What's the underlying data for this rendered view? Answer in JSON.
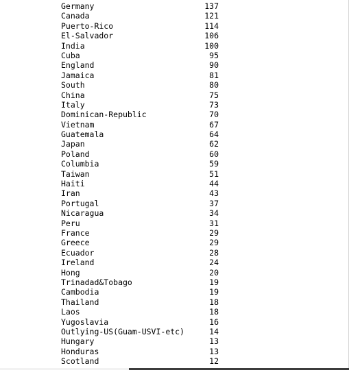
{
  "rows": [
    {
      "country": "Germany",
      "count": "137"
    },
    {
      "country": "Canada",
      "count": "121"
    },
    {
      "country": "Puerto-Rico",
      "count": "114"
    },
    {
      "country": "El-Salvador",
      "count": "106"
    },
    {
      "country": "India",
      "count": "100"
    },
    {
      "country": "Cuba",
      "count": "95"
    },
    {
      "country": "England",
      "count": "90"
    },
    {
      "country": "Jamaica",
      "count": "81"
    },
    {
      "country": "South",
      "count": "80"
    },
    {
      "country": "China",
      "count": "75"
    },
    {
      "country": "Italy",
      "count": "73"
    },
    {
      "country": "Dominican-Republic",
      "count": "70"
    },
    {
      "country": "Vietnam",
      "count": "67"
    },
    {
      "country": "Guatemala",
      "count": "64"
    },
    {
      "country": "Japan",
      "count": "62"
    },
    {
      "country": "Poland",
      "count": "60"
    },
    {
      "country": "Columbia",
      "count": "59"
    },
    {
      "country": "Taiwan",
      "count": "51"
    },
    {
      "country": "Haiti",
      "count": "44"
    },
    {
      "country": "Iran",
      "count": "43"
    },
    {
      "country": "Portugal",
      "count": "37"
    },
    {
      "country": "Nicaragua",
      "count": "34"
    },
    {
      "country": "Peru",
      "count": "31"
    },
    {
      "country": "France",
      "count": "29"
    },
    {
      "country": "Greece",
      "count": "29"
    },
    {
      "country": "Ecuador",
      "count": "28"
    },
    {
      "country": "Ireland",
      "count": "24"
    },
    {
      "country": "Hong",
      "count": "20"
    },
    {
      "country": "Trinadad&Tobago",
      "count": "19"
    },
    {
      "country": "Cambodia",
      "count": "19"
    },
    {
      "country": "Thailand",
      "count": "18"
    },
    {
      "country": "Laos",
      "count": "18"
    },
    {
      "country": "Yugoslavia",
      "count": "16"
    },
    {
      "country": "Outlying-US(Guam-USVI-etc)",
      "count": "14"
    },
    {
      "country": "Hungary",
      "count": "13"
    },
    {
      "country": "Honduras",
      "count": "13"
    },
    {
      "country": "Scotland",
      "count": "12"
    }
  ]
}
